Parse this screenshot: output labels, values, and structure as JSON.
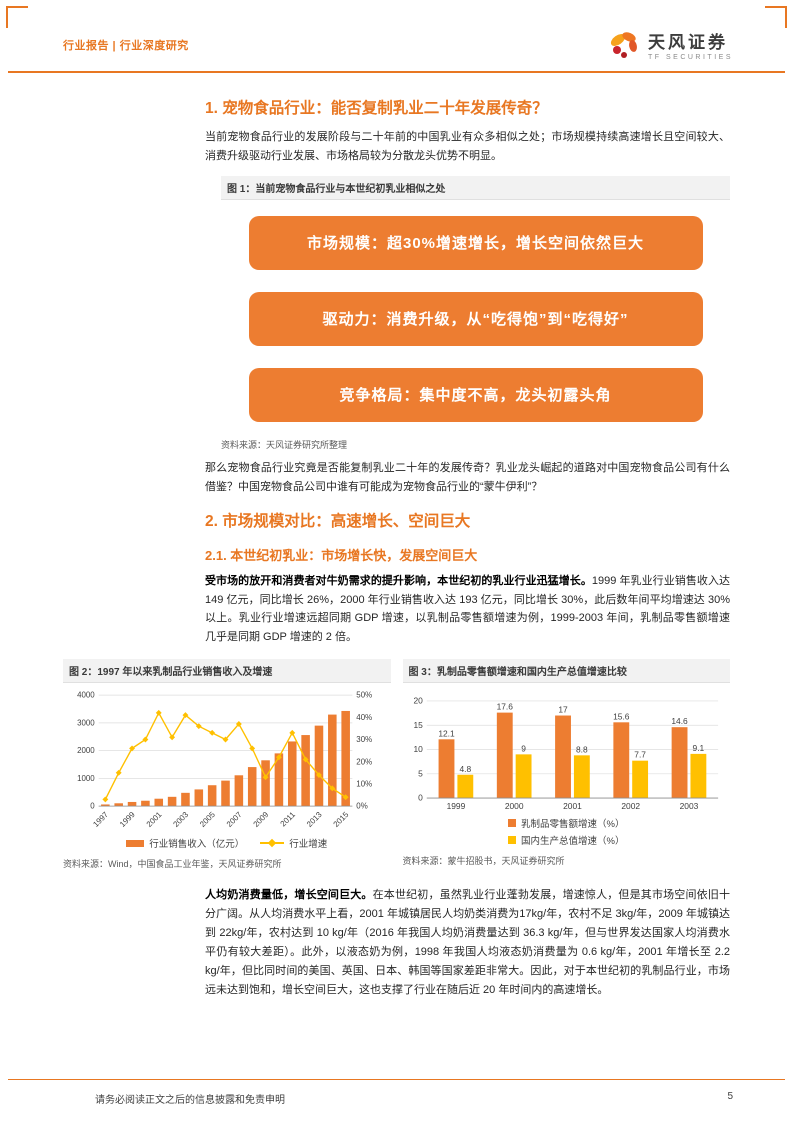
{
  "page": {
    "header_left": "行业报告 | 行业深度研究",
    "brand_name": "天风证券",
    "brand_sub": "TF SECURITIES",
    "footer_text": "请务必阅读正文之后的信息披露和免责申明",
    "page_number": "5",
    "accent_color": "#E87722"
  },
  "section1": {
    "title": "1. 宠物食品行业：能否复制乳业二十年发展传奇？",
    "para1": "当前宠物食品行业的发展阶段与二十年前的中国乳业有众多相似之处；市场规模持续高速增长且空间较大、消费升级驱动行业发展、市场格局较为分散龙头优势不明显。",
    "figure1_caption": "图 1：当前宠物食品行业与本世纪初乳业相似之处",
    "boxes": [
      "市场规模：超30%增速增长，增长空间依然巨大",
      "驱动力：消费升级，从“吃得饱”到“吃得好”",
      "竞争格局：集中度不高，龙头初露头角"
    ],
    "figure1_source": "资料来源：天风证券研究所整理",
    "para2": "那么宠物食品行业究竟是否能复制乳业二十年的发展传奇？乳业龙头崛起的道路对中国宠物食品公司有什么借鉴？中国宠物食品公司中谁有可能成为宠物食品行业的“蒙牛伊利”？"
  },
  "section2": {
    "title": "2. 市场规模对比：高速增长、空间巨大",
    "sub_title": "2.1. 本世纪初乳业：市场增长快，发展空间巨大",
    "para1_bold": "受市场的放开和消费者对牛奶需求的提升影响，本世纪初的乳业行业迅猛增长。",
    "para1_rest": "1999 年乳业行业销售收入达 149 亿元，同比增长 26%，2000 年行业销售收入达 193 亿元，同比增长 30%，此后数年间平均增速达 30%以上。乳业行业增速远超同期 GDP 增速，以乳制品零售额增速为例，1999-2003 年间，乳制品零售额增速几乎是同期 GDP 增速的 2 倍。",
    "para2_bold": "人均奶消费量低，增长空间巨大。",
    "para2_rest": "在本世纪初，虽然乳业行业蓬勃发展，增速惊人，但是其市场空间依旧十分广阔。从人均消费水平上看，2001 年城镇居民人均奶类消费为17kg/年，农村不足 3kg/年，2009 年城镇达到 22kg/年，农村达到 10 kg/年（2016 年我国人均奶消费量达到 36.3 kg/年，但与世界发达国家人均消费水平仍有较大差距）。此外，以液态奶为例，1998 年我国人均液态奶消费量为 0.6 kg/年，2001 年增长至 2.2 kg/年，但比同时间的美国、英国、日本、韩国等国家差距非常大。因此，对于本世纪初的乳制品行业，市场远未达到饱和，增长空间巨大，这也支撑了行业在随后近 20 年时间内的高速增长。"
  },
  "chart_data": [
    {
      "id": "figure2",
      "type": "bar",
      "combo": "bar+line",
      "title": "图 2：1997 年以来乳制品行业销售收入及增速",
      "source": "资料来源：Wind，中国食品工业年鉴，天风证券研究所",
      "categories": [
        "1997",
        "1998",
        "1999",
        "2000",
        "2001",
        "2002",
        "2003",
        "2004",
        "2005",
        "2006",
        "2007",
        "2008",
        "2009",
        "2010",
        "2011",
        "2012",
        "2013",
        "2014",
        "2015"
      ],
      "series": [
        {
          "name": "行业销售收入（亿元）",
          "type": "bar",
          "axis": "left",
          "color": "#ED7D31",
          "values": [
            59,
            101,
            149,
            193,
            266,
            334,
            478,
            601,
            752,
            918,
            1110,
            1406,
            1650,
            1900,
            2330,
            2560,
            2900,
            3298,
            3429
          ]
        },
        {
          "name": "行业增速",
          "type": "line",
          "axis": "right",
          "color": "#FFC000",
          "values": [
            3,
            15,
            26,
            30,
            42,
            31,
            41,
            36,
            33,
            30,
            37,
            26,
            13,
            22,
            33,
            21,
            14,
            8,
            4
          ]
        }
      ],
      "left_axis": {
        "min": 0,
        "max": 4000,
        "ticks": [
          0,
          1000,
          2000,
          3000,
          4000
        ]
      },
      "right_axis": {
        "min": 0,
        "max": 50,
        "tick_labels": [
          "0%",
          "10%",
          "20%",
          "30%",
          "40%",
          "50%"
        ]
      },
      "x_tick_step": 2,
      "grid": true,
      "legend_position": "bottom"
    },
    {
      "id": "figure3",
      "type": "bar",
      "title": "图 3：乳制品零售额增速和国内生产总值增速比较",
      "source": "资料来源：蒙牛招股书，天风证券研究所",
      "categories": [
        "1999",
        "2000",
        "2001",
        "2002",
        "2003"
      ],
      "series": [
        {
          "name": "乳制品零售额增速（%）",
          "color": "#ED7D31",
          "values": [
            12.1,
            17.6,
            17,
            15.6,
            14.6
          ]
        },
        {
          "name": "国内生产总值增速（%）",
          "color": "#FFC000",
          "values": [
            4.8,
            9,
            8.8,
            7.7,
            9.1
          ]
        }
      ],
      "y_axis": {
        "min": 0,
        "max": 20,
        "ticks": [
          0,
          5,
          10,
          15,
          20
        ]
      },
      "data_labels": true,
      "grid": true,
      "legend_position": "bottom"
    }
  ]
}
